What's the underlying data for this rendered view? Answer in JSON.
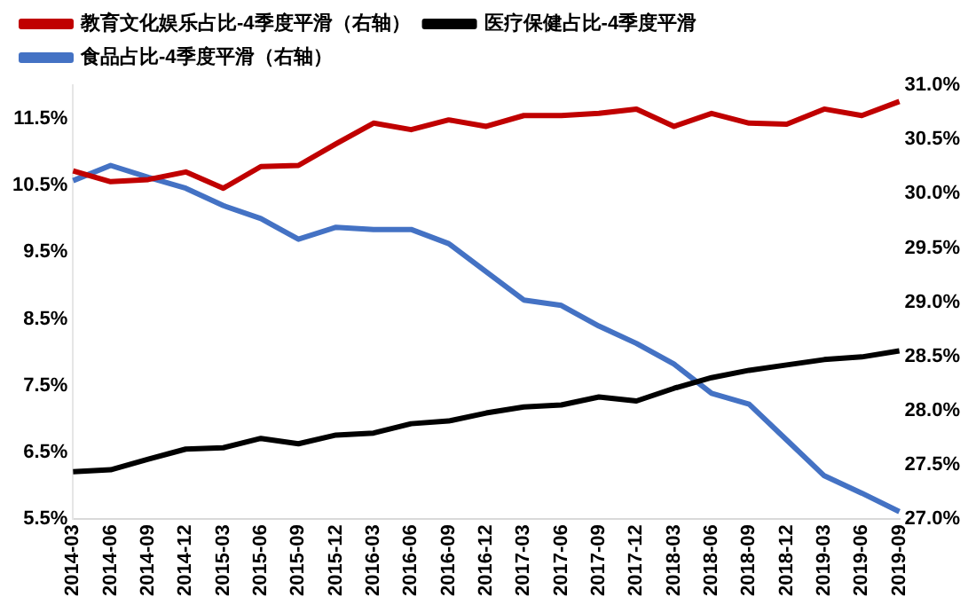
{
  "chart_data": {
    "type": "line",
    "categories": [
      "2014-03",
      "2014-06",
      "2014-09",
      "2014-12",
      "2015-03",
      "2015-06",
      "2015-09",
      "2015-12",
      "2016-03",
      "2016-06",
      "2016-09",
      "2016-12",
      "2017-03",
      "2017-06",
      "2017-09",
      "2017-12",
      "2018-03",
      "2018-06",
      "2018-09",
      "2018-12",
      "2019-03",
      "2019-06",
      "2019-09"
    ],
    "series": [
      {
        "name": "教育文化娱乐占比-4季度平滑（右轴）",
        "color": "#c00000",
        "axis": "y2",
        "values": [
          30.21,
          30.11,
          30.13,
          30.2,
          30.05,
          30.25,
          30.26,
          30.46,
          30.65,
          30.59,
          30.68,
          30.62,
          30.72,
          30.72,
          30.74,
          30.78,
          30.62,
          30.74,
          30.65,
          30.64,
          30.78,
          30.72,
          30.85
        ]
      },
      {
        "name": "医疗保健占比-4季度平滑",
        "color": "#000000",
        "values": [
          6.21,
          6.24,
          6.4,
          6.55,
          6.57,
          6.71,
          6.63,
          6.76,
          6.79,
          6.93,
          6.97,
          7.09,
          7.18,
          7.21,
          7.33,
          7.27,
          7.46,
          7.62,
          7.73,
          7.81,
          7.89,
          7.93,
          8.02
        ]
      },
      {
        "name": "食品占比-4季度平滑（右轴）",
        "color": "#4472c4",
        "axis": "y2",
        "values": [
          30.12,
          30.26,
          30.15,
          30.05,
          29.89,
          29.77,
          29.58,
          29.69,
          29.67,
          29.67,
          29.54,
          29.28,
          29.02,
          28.97,
          28.78,
          28.62,
          28.43,
          28.16,
          28.06,
          27.73,
          27.4,
          27.24,
          27.07
        ]
      }
    ],
    "ylim": [
      5.5,
      12
    ],
    "yticks": [
      {
        "value": 5.5,
        "label": "5.5%"
      },
      {
        "value": 6.5,
        "label": "6.5%"
      },
      {
        "value": 7.5,
        "label": "7.5%"
      },
      {
        "value": 8.5,
        "label": "8.5%"
      },
      {
        "value": 9.5,
        "label": "9.5%"
      },
      {
        "value": 10.5,
        "label": "10.5%"
      },
      {
        "value": 11.5,
        "label": "11.5%"
      }
    ],
    "y2lim": [
      27,
      31
    ],
    "y2ticks": [
      {
        "value": 27,
        "label": "27.0%"
      },
      {
        "value": 27.5,
        "label": "27.5%"
      },
      {
        "value": 28,
        "label": "28.0%"
      },
      {
        "value": 28.5,
        "label": "28.5%"
      },
      {
        "value": 29,
        "label": "29.0%"
      },
      {
        "value": 29.5,
        "label": "29.5%"
      },
      {
        "value": 30,
        "label": "30.0%"
      },
      {
        "value": 30.5,
        "label": "30.5%"
      },
      {
        "value": 31,
        "label": "31.0%"
      }
    ],
    "grid": false,
    "legend": "top",
    "marker": "none",
    "line_style": "solid"
  }
}
